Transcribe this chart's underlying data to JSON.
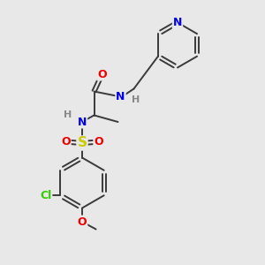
{
  "bg_color": "#e8e8e8",
  "bond_color": "#3a3a3a",
  "atom_colors": {
    "N": "#0000ee",
    "O": "#ee0000",
    "S": "#cccc00",
    "Cl": "#33cc00",
    "C": "#3a3a3a",
    "H": "#888888"
  },
  "figsize": [
    3.0,
    3.0
  ],
  "dpi": 100
}
